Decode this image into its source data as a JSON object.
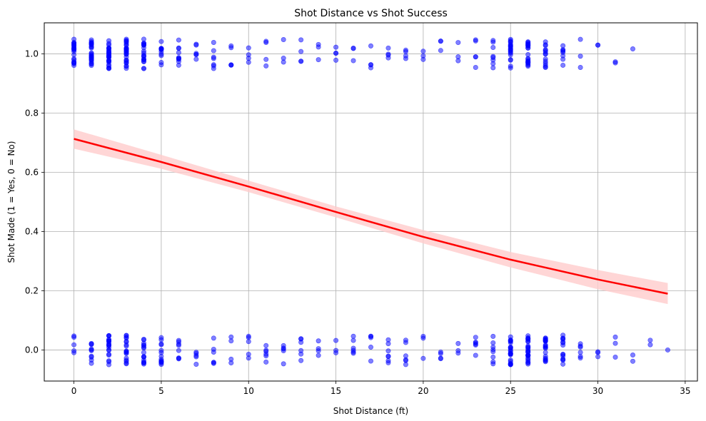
{
  "chart_data": {
    "type": "scatter",
    "title": "Shot Distance vs Shot Success",
    "xlabel": "Shot Distance (ft)",
    "ylabel": "Shot Made (1 = Yes, 0 = No)",
    "xlim": [
      -1.7,
      35.7
    ],
    "ylim": [
      -0.105,
      1.105
    ],
    "x_ticks": [
      0,
      5,
      10,
      15,
      20,
      25,
      30,
      35
    ],
    "y_ticks": [
      0.0,
      0.2,
      0.4,
      0.6,
      0.8,
      1.0
    ],
    "x_tick_labels": [
      "0",
      "5",
      "10",
      "15",
      "20",
      "25",
      "30",
      "35"
    ],
    "y_tick_labels": [
      "0.0",
      "0.2",
      "0.4",
      "0.6",
      "0.8",
      "1.0"
    ],
    "grid": true,
    "jitter": 0.05,
    "point_color": "#0000ff",
    "point_opacity": 0.5,
    "made_distances": [
      0,
      1,
      2,
      3,
      4,
      5,
      6,
      7,
      8,
      9,
      10,
      11,
      12,
      13,
      14,
      15,
      16,
      17,
      18,
      19,
      20,
      21,
      22,
      23,
      24,
      25,
      26,
      27,
      28,
      29,
      30,
      31,
      32
    ],
    "made_counts": [
      22,
      26,
      30,
      28,
      20,
      12,
      10,
      6,
      7,
      5,
      4,
      4,
      3,
      4,
      3,
      4,
      3,
      4,
      4,
      4,
      3,
      3,
      3,
      5,
      8,
      20,
      22,
      14,
      8,
      3,
      2,
      2,
      1
    ],
    "missed_distances": [
      0,
      1,
      2,
      3,
      4,
      5,
      6,
      7,
      8,
      9,
      10,
      11,
      12,
      13,
      14,
      15,
      16,
      17,
      18,
      19,
      20,
      21,
      22,
      23,
      24,
      25,
      26,
      27,
      28,
      29,
      30,
      31,
      32,
      33,
      34
    ],
    "missed_counts": [
      5,
      10,
      20,
      18,
      16,
      14,
      8,
      5,
      6,
      4,
      5,
      6,
      5,
      6,
      4,
      3,
      6,
      5,
      7,
      6,
      3,
      4,
      3,
      6,
      8,
      24,
      26,
      20,
      14,
      6,
      3,
      3,
      2,
      2,
      1
    ],
    "fit": {
      "color": "#ff0000",
      "band_color": "#ffcccc",
      "x": [
        0,
        5,
        10,
        15,
        20,
        25,
        30,
        34
      ],
      "y": [
        0.713,
        0.635,
        0.552,
        0.466,
        0.382,
        0.305,
        0.238,
        0.19
      ],
      "y_lower": [
        0.68,
        0.612,
        0.533,
        0.448,
        0.36,
        0.279,
        0.205,
        0.155
      ],
      "y_upper": [
        0.745,
        0.659,
        0.572,
        0.485,
        0.405,
        0.331,
        0.27,
        0.226
      ]
    }
  }
}
